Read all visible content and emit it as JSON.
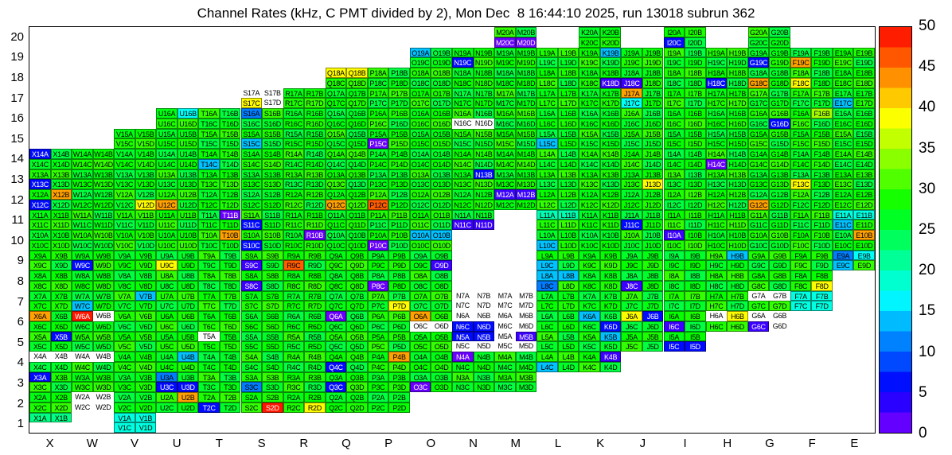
{
  "title": "Channel Rates (kHz, C PMT divided by 2), Mon Dec  8 16:44:10 2025, run 13018 subrun 362",
  "chart_data": {
    "type": "heatmap",
    "unit": "kHz",
    "x_categories": [
      "X",
      "W",
      "V",
      "U",
      "T",
      "S",
      "R",
      "Q",
      "P",
      "O",
      "N",
      "M",
      "L",
      "K",
      "J",
      "I",
      "H",
      "G",
      "F",
      "E"
    ],
    "y_categories": [
      20,
      19,
      18,
      17,
      16,
      15,
      14,
      13,
      12,
      11,
      10,
      9,
      8,
      7,
      6,
      5,
      4,
      3,
      2,
      1
    ],
    "cell_letters": [
      "A",
      "B",
      "C",
      "D"
    ],
    "colorbar": {
      "min": 0,
      "max": 50,
      "ticks": [
        0,
        5,
        10,
        15,
        20,
        25,
        30,
        35,
        40,
        45,
        50
      ],
      "position": "right",
      "colormap": "rainbow (violet=0 to red=50), zero/empty bins drawn white"
    },
    "code_values": {
      "g": 27,
      "w": 0,
      "v": 1,
      "d": 3,
      "b": 6,
      "B": 11,
      "c": 14,
      "t": 17,
      "E": 18,
      "T": 20,
      "e": 22,
      "Y": 35,
      "y": 39,
      "o": 43,
      "O": 46,
      "r": 49
    },
    "notes": "Each block col+row holds 4 channels A,B (top) and C,D (bottom). Code string gives rate class per channel: g=typical green ~25-30 kHz (mottled), w=0 (white, channel present), .=channel absent. Values in kHz read against the 0-50 colour scale.",
    "blocks": [
      [
        "M",
        20,
        "ggvv"
      ],
      [
        "K",
        20,
        "gggg"
      ],
      [
        "I",
        20,
        "ggbg"
      ],
      [
        "G",
        20,
        "gggg"
      ],
      [
        "O",
        19,
        "cggg"
      ],
      [
        "N",
        19,
        "ggbg"
      ],
      [
        "M",
        19,
        "gggg"
      ],
      [
        "L",
        19,
        "gggg"
      ],
      [
        "K",
        19,
        "gcgg"
      ],
      [
        "J",
        19,
        "gggg"
      ],
      [
        "I",
        19,
        "gggg"
      ],
      [
        "H",
        19,
        "gggg"
      ],
      [
        "G",
        19,
        "ggbg"
      ],
      [
        "F",
        19,
        "ggog"
      ],
      [
        "E",
        19,
        "gggg"
      ],
      [
        "Q",
        18,
        "yygg"
      ],
      [
        "P",
        18,
        "gggg"
      ],
      [
        "O",
        18,
        "gggg"
      ],
      [
        "N",
        18,
        "gggg"
      ],
      [
        "M",
        18,
        "gggg"
      ],
      [
        "L",
        18,
        "gggg"
      ],
      [
        "K",
        18,
        "gggd"
      ],
      [
        "J",
        18,
        "ggdg"
      ],
      [
        "I",
        18,
        "gggg"
      ],
      [
        "H",
        18,
        "ggbg"
      ],
      [
        "G",
        18,
        "ggog"
      ],
      [
        "F",
        18,
        "ggyg"
      ],
      [
        "E",
        18,
        "gggg"
      ],
      [
        "S",
        17,
        "wwyw"
      ],
      [
        "R",
        17,
        "gggg"
      ],
      [
        "Q",
        17,
        "gggg"
      ],
      [
        "P",
        17,
        "gggg"
      ],
      [
        "O",
        17,
        "gggg"
      ],
      [
        "N",
        17,
        "gggg"
      ],
      [
        "M",
        17,
        "gggg"
      ],
      [
        "L",
        17,
        "gggg"
      ],
      [
        "K",
        17,
        "gggg"
      ],
      [
        "J",
        17,
        "ogtg"
      ],
      [
        "I",
        17,
        "gggg"
      ],
      [
        "H",
        17,
        "gggg"
      ],
      [
        "G",
        17,
        "gggg"
      ],
      [
        "F",
        17,
        "gggg"
      ],
      [
        "E",
        17,
        "ggcg"
      ],
      [
        "U",
        16,
        "gtgg"
      ],
      [
        "T",
        16,
        "gggg"
      ],
      [
        "S",
        16,
        "Bggg"
      ],
      [
        "R",
        16,
        "gggg"
      ],
      [
        "Q",
        16,
        "gggg"
      ],
      [
        "P",
        16,
        "gggg"
      ],
      [
        "O",
        16,
        "gggg"
      ],
      [
        "N",
        16,
        "ggww"
      ],
      [
        "M",
        16,
        "gggg"
      ],
      [
        "L",
        16,
        "gggg"
      ],
      [
        "K",
        16,
        "gggg"
      ],
      [
        "J",
        16,
        "gggg"
      ],
      [
        "I",
        16,
        "gggg"
      ],
      [
        "H",
        16,
        "gggg"
      ],
      [
        "G",
        16,
        "gggb"
      ],
      [
        "F",
        16,
        "gYgg"
      ],
      [
        "E",
        16,
        "gggg"
      ],
      [
        "V",
        15,
        "gggg"
      ],
      [
        "U",
        15,
        "gggg"
      ],
      [
        "T",
        15,
        "gggg"
      ],
      [
        "S",
        15,
        "ggcg"
      ],
      [
        "R",
        15,
        "gggg"
      ],
      [
        "Q",
        15,
        "gggg"
      ],
      [
        "P",
        15,
        "ggvg"
      ],
      [
        "O",
        15,
        "gggg"
      ],
      [
        "N",
        15,
        "gggg"
      ],
      [
        "M",
        15,
        "gggg"
      ],
      [
        "L",
        15,
        "ggcg"
      ],
      [
        "K",
        15,
        "gggg"
      ],
      [
        "J",
        15,
        "gggg"
      ],
      [
        "I",
        15,
        "gggg"
      ],
      [
        "H",
        15,
        "gggg"
      ],
      [
        "G",
        15,
        "gggg"
      ],
      [
        "F",
        15,
        "gggg"
      ],
      [
        "E",
        15,
        "gggg"
      ],
      [
        "X",
        14,
        "bggg"
      ],
      [
        "W",
        14,
        "gggg"
      ],
      [
        "V",
        14,
        "gggg"
      ],
      [
        "U",
        14,
        "gggg"
      ],
      [
        "T",
        14,
        "ggcg"
      ],
      [
        "S",
        14,
        "gggg"
      ],
      [
        "R",
        14,
        "gggg"
      ],
      [
        "Q",
        14,
        "gggg"
      ],
      [
        "P",
        14,
        "gggg"
      ],
      [
        "O",
        14,
        "gggg"
      ],
      [
        "N",
        14,
        "gggg"
      ],
      [
        "M",
        14,
        "gggg"
      ],
      [
        "L",
        14,
        "gggg"
      ],
      [
        "K",
        14,
        "gggg"
      ],
      [
        "J",
        14,
        "gggg"
      ],
      [
        "I",
        14,
        "gggg"
      ],
      [
        "H",
        14,
        "ggvg"
      ],
      [
        "G",
        14,
        "gggg"
      ],
      [
        "F",
        14,
        "gggg"
      ],
      [
        "E",
        14,
        "gggg"
      ],
      [
        "X",
        13,
        "ggbg"
      ],
      [
        "W",
        13,
        "gggg"
      ],
      [
        "V",
        13,
        "gggg"
      ],
      [
        "U",
        13,
        "gggg"
      ],
      [
        "T",
        13,
        "gggg"
      ],
      [
        "S",
        13,
        "gggg"
      ],
      [
        "R",
        13,
        "gggg"
      ],
      [
        "Q",
        13,
        "gggg"
      ],
      [
        "P",
        13,
        "gggg"
      ],
      [
        "O",
        13,
        "gggg"
      ],
      [
        "N",
        13,
        "gbgg"
      ],
      [
        "M",
        13,
        "gggg"
      ],
      [
        "L",
        13,
        "gggg"
      ],
      [
        "K",
        13,
        "gggg"
      ],
      [
        "J",
        13,
        "gggy"
      ],
      [
        "I",
        13,
        "gggg"
      ],
      [
        "H",
        13,
        "gggg"
      ],
      [
        "G",
        13,
        "gggg"
      ],
      [
        "F",
        13,
        "ggyg"
      ],
      [
        "E",
        13,
        "gggg"
      ],
      [
        "X",
        12,
        "gobg"
      ],
      [
        "W",
        12,
        "gggg"
      ],
      [
        "V",
        12,
        "gggy"
      ],
      [
        "U",
        12,
        "ggog"
      ],
      [
        "T",
        12,
        "gggg"
      ],
      [
        "S",
        12,
        "gggg"
      ],
      [
        "R",
        12,
        "gggg"
      ],
      [
        "Q",
        12,
        "ggog"
      ],
      [
        "P",
        12,
        "ggOg"
      ],
      [
        "O",
        12,
        "gggg"
      ],
      [
        "N",
        12,
        "gggg"
      ],
      [
        "M",
        12,
        "ddgg"
      ],
      [
        "L",
        12,
        "gggg"
      ],
      [
        "K",
        12,
        "gggg"
      ],
      [
        "J",
        12,
        "gggg"
      ],
      [
        "I",
        12,
        "gggg"
      ],
      [
        "H",
        12,
        "gggg"
      ],
      [
        "G",
        12,
        "ggog"
      ],
      [
        "F",
        12,
        "gggg"
      ],
      [
        "E",
        12,
        "gggg"
      ],
      [
        "X",
        11,
        "gggg"
      ],
      [
        "W",
        11,
        "gggg"
      ],
      [
        "V",
        11,
        "gggg"
      ],
      [
        "U",
        11,
        "gggg"
      ],
      [
        "T",
        11,
        "gvgg"
      ],
      [
        "S",
        11,
        "ggbg"
      ],
      [
        "R",
        11,
        "gggg"
      ],
      [
        "Q",
        11,
        "gggg"
      ],
      [
        "P",
        11,
        "gggg"
      ],
      [
        "O",
        11,
        "gggg"
      ],
      [
        "N",
        11,
        "ggdd"
      ],
      [
        "L",
        11,
        "TTgg"
      ],
      [
        "K",
        11,
        "gggg"
      ],
      [
        "J",
        11,
        "ggbg"
      ],
      [
        "I",
        11,
        "gggg"
      ],
      [
        "H",
        11,
        "gggg"
      ],
      [
        "G",
        11,
        "gggg"
      ],
      [
        "F",
        11,
        "gggg"
      ],
      [
        "E",
        11,
        "EEcg"
      ],
      [
        "X",
        10,
        "gggg"
      ],
      [
        "W",
        10,
        "gggg"
      ],
      [
        "V",
        10,
        "gggg"
      ],
      [
        "U",
        10,
        "gggg"
      ],
      [
        "T",
        10,
        "gogg"
      ],
      [
        "S",
        10,
        "ggbg"
      ],
      [
        "R",
        10,
        "gvgg"
      ],
      [
        "Q",
        10,
        "gggg"
      ],
      [
        "P",
        10,
        "ggvg"
      ],
      [
        "O",
        10,
        "ccgg"
      ],
      [
        "L",
        10,
        "ggcg"
      ],
      [
        "K",
        10,
        "gggg"
      ],
      [
        "J",
        10,
        "gggg"
      ],
      [
        "I",
        10,
        "dggg"
      ],
      [
        "H",
        10,
        "gggg"
      ],
      [
        "G",
        10,
        "gggg"
      ],
      [
        "F",
        10,
        "gggg"
      ],
      [
        "E",
        10,
        "gogg"
      ],
      [
        "X",
        9,
        "gggg"
      ],
      [
        "W",
        9,
        "ggbg"
      ],
      [
        "V",
        9,
        "gggg"
      ],
      [
        "U",
        9,
        "ggyg"
      ],
      [
        "T",
        9,
        "gggg"
      ],
      [
        "S",
        9,
        "ggdg"
      ],
      [
        "R",
        9,
        "ggOg"
      ],
      [
        "Q",
        9,
        "gggg"
      ],
      [
        "P",
        9,
        "gggg"
      ],
      [
        "O",
        9,
        "gggd"
      ],
      [
        "L",
        9,
        "ggcg"
      ],
      [
        "K",
        9,
        "gggg"
      ],
      [
        "J",
        9,
        "gggg"
      ],
      [
        "I",
        9,
        "gggg"
      ],
      [
        "H",
        9,
        "gcgg"
      ],
      [
        "G",
        9,
        "gggg"
      ],
      [
        "F",
        9,
        "gggg"
      ],
      [
        "E",
        9,
        "Btcg"
      ],
      [
        "X",
        8,
        "gggg"
      ],
      [
        "W",
        8,
        "gggg"
      ],
      [
        "V",
        8,
        "gggg"
      ],
      [
        "U",
        8,
        "gggg"
      ],
      [
        "T",
        8,
        "gggg"
      ],
      [
        "S",
        8,
        "ggdg"
      ],
      [
        "R",
        8,
        "gggg"
      ],
      [
        "Q",
        8,
        "gggg"
      ],
      [
        "P",
        8,
        "ggvg"
      ],
      [
        "O",
        8,
        "gggg"
      ],
      [
        "L",
        8,
        "ccBg"
      ],
      [
        "K",
        8,
        "gggg"
      ],
      [
        "J",
        8,
        "ggdg"
      ],
      [
        "I",
        8,
        "gggg"
      ],
      [
        "H",
        8,
        "gggg"
      ],
      [
        "G",
        8,
        "gggg"
      ],
      [
        "F",
        8,
        "gggy"
      ],
      [
        "X",
        7,
        "gggg"
      ],
      [
        "W",
        7,
        "ggcg"
      ],
      [
        "V",
        7,
        "gcgg"
      ],
      [
        "U",
        7,
        "gggg"
      ],
      [
        "T",
        7,
        "gggg"
      ],
      [
        "S",
        7,
        "gggg"
      ],
      [
        "R",
        7,
        "gggg"
      ],
      [
        "Q",
        7,
        "gggg"
      ],
      [
        "P",
        7,
        "gggy"
      ],
      [
        "O",
        7,
        "gggg"
      ],
      [
        "N",
        7,
        "wwww"
      ],
      [
        "M",
        7,
        "wwww"
      ],
      [
        "L",
        7,
        "gggg"
      ],
      [
        "K",
        7,
        "gggg"
      ],
      [
        "J",
        7,
        "gggg"
      ],
      [
        "I",
        7,
        "gggg"
      ],
      [
        "H",
        7,
        "gggg"
      ],
      [
        "G",
        7,
        "wwgg"
      ],
      [
        "F",
        7,
        "EEEE"
      ],
      [
        "X",
        6,
        "oggg"
      ],
      [
        "W",
        6,
        "rwgg"
      ],
      [
        "V",
        6,
        "gggg"
      ],
      [
        "U",
        6,
        "gggg"
      ],
      [
        "T",
        6,
        "gggg"
      ],
      [
        "S",
        6,
        "gggg"
      ],
      [
        "R",
        6,
        "gggg"
      ],
      [
        "Q",
        6,
        "vggg"
      ],
      [
        "P",
        6,
        "gggg"
      ],
      [
        "O",
        6,
        "ogww"
      ],
      [
        "N",
        6,
        "wwbb"
      ],
      [
        "M",
        6,
        "wwww"
      ],
      [
        "L",
        6,
        "gggg"
      ],
      [
        "K",
        6,
        "cggb"
      ],
      [
        "J",
        6,
        "ybgg"
      ],
      [
        "I",
        6,
        "ggdg"
      ],
      [
        "H",
        6,
        "wygg"
      ],
      [
        "G",
        6,
        "wwdw"
      ],
      [
        "X",
        5,
        "gbgg"
      ],
      [
        "W",
        5,
        "gggg"
      ],
      [
        "V",
        5,
        "gggg"
      ],
      [
        "U",
        5,
        "gggg"
      ],
      [
        "T",
        5,
        "wggg"
      ],
      [
        "S",
        5,
        "gggg"
      ],
      [
        "R",
        5,
        "gggg"
      ],
      [
        "Q",
        5,
        "gggg"
      ],
      [
        "P",
        5,
        "gggg"
      ],
      [
        "O",
        5,
        "gggg"
      ],
      [
        "N",
        5,
        "bbww"
      ],
      [
        "M",
        5,
        "wdww"
      ],
      [
        "L",
        5,
        "gggg"
      ],
      [
        "K",
        5,
        "gcgg"
      ],
      [
        "J",
        5,
        "gggg"
      ],
      [
        "I",
        5,
        "ggbb"
      ],
      [
        "X",
        4,
        "wwgg"
      ],
      [
        "W",
        4,
        "wwgg"
      ],
      [
        "V",
        4,
        "gggg"
      ],
      [
        "U",
        4,
        "gcgg"
      ],
      [
        "T",
        4,
        "gggg"
      ],
      [
        "S",
        4,
        "gggg"
      ],
      [
        "R",
        4,
        "gggg"
      ],
      [
        "Q",
        4,
        "ggbg"
      ],
      [
        "P",
        4,
        "gogg"
      ],
      [
        "O",
        4,
        "gggg"
      ],
      [
        "N",
        4,
        "vggg"
      ],
      [
        "M",
        4,
        "gggg"
      ],
      [
        "L",
        4,
        "ggcg"
      ],
      [
        "K",
        4,
        "gdgg"
      ],
      [
        "X",
        3,
        "bggg"
      ],
      [
        "W",
        3,
        "gggg"
      ],
      [
        "V",
        3,
        "gggg"
      ],
      [
        "U",
        3,
        "Bgbb"
      ],
      [
        "T",
        3,
        "gggg"
      ],
      [
        "S",
        3,
        "ggBg"
      ],
      [
        "R",
        3,
        "gggg"
      ],
      [
        "Q",
        3,
        "ggbg"
      ],
      [
        "P",
        3,
        "gggg"
      ],
      [
        "O",
        3,
        "ggvg"
      ],
      [
        "N",
        3,
        "gggg"
      ],
      [
        "M",
        3,
        "gggg"
      ],
      [
        "X",
        2,
        "gggg"
      ],
      [
        "W",
        2,
        "wwww"
      ],
      [
        "V",
        2,
        "gggg"
      ],
      [
        "U",
        2,
        "gogg"
      ],
      [
        "T",
        2,
        "ggbg"
      ],
      [
        "S",
        2,
        "gggr"
      ],
      [
        "R",
        2,
        "gggy"
      ],
      [
        "Q",
        2,
        "gggg"
      ],
      [
        "P",
        2,
        "gggg"
      ],
      [
        "X",
        1,
        "ee.."
      ],
      [
        "V",
        1,
        "EEEE"
      ]
    ]
  }
}
